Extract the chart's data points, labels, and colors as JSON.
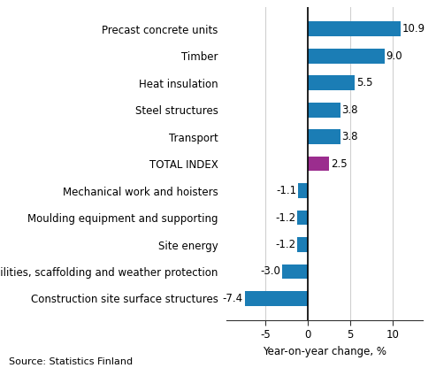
{
  "categories": [
    "Construction site surface structures",
    "Site facilities, scaffolding and weather protection",
    "Site energy",
    "Moulding equipment and supporting",
    "Mechanical work and hoisters",
    "TOTAL INDEX",
    "Transport",
    "Steel structures",
    "Heat insulation",
    "Timber",
    "Precast concrete units"
  ],
  "values": [
    -7.4,
    -3.0,
    -1.2,
    -1.2,
    -1.1,
    2.5,
    3.8,
    3.8,
    5.5,
    9.0,
    10.9
  ],
  "colors": [
    "#1b7db5",
    "#1b7db5",
    "#1b7db5",
    "#1b7db5",
    "#1b7db5",
    "#9b2d8e",
    "#1b7db5",
    "#1b7db5",
    "#1b7db5",
    "#1b7db5",
    "#1b7db5"
  ],
  "xlabel": "Year-on-year change, %",
  "source": "Source: Statistics Finland",
  "xlim": [
    -9.5,
    13.5
  ],
  "xticks": [
    -5,
    0,
    5,
    10
  ],
  "value_labels": [
    "-7.4",
    "-3.0",
    "-1.2",
    "-1.2",
    "-1.1",
    "2.5",
    "3.8",
    "3.8",
    "5.5",
    "9.0",
    "10.9"
  ],
  "bar_height": 0.55,
  "background_color": "#ffffff",
  "label_fontsize": 8.5,
  "tick_fontsize": 8.5
}
